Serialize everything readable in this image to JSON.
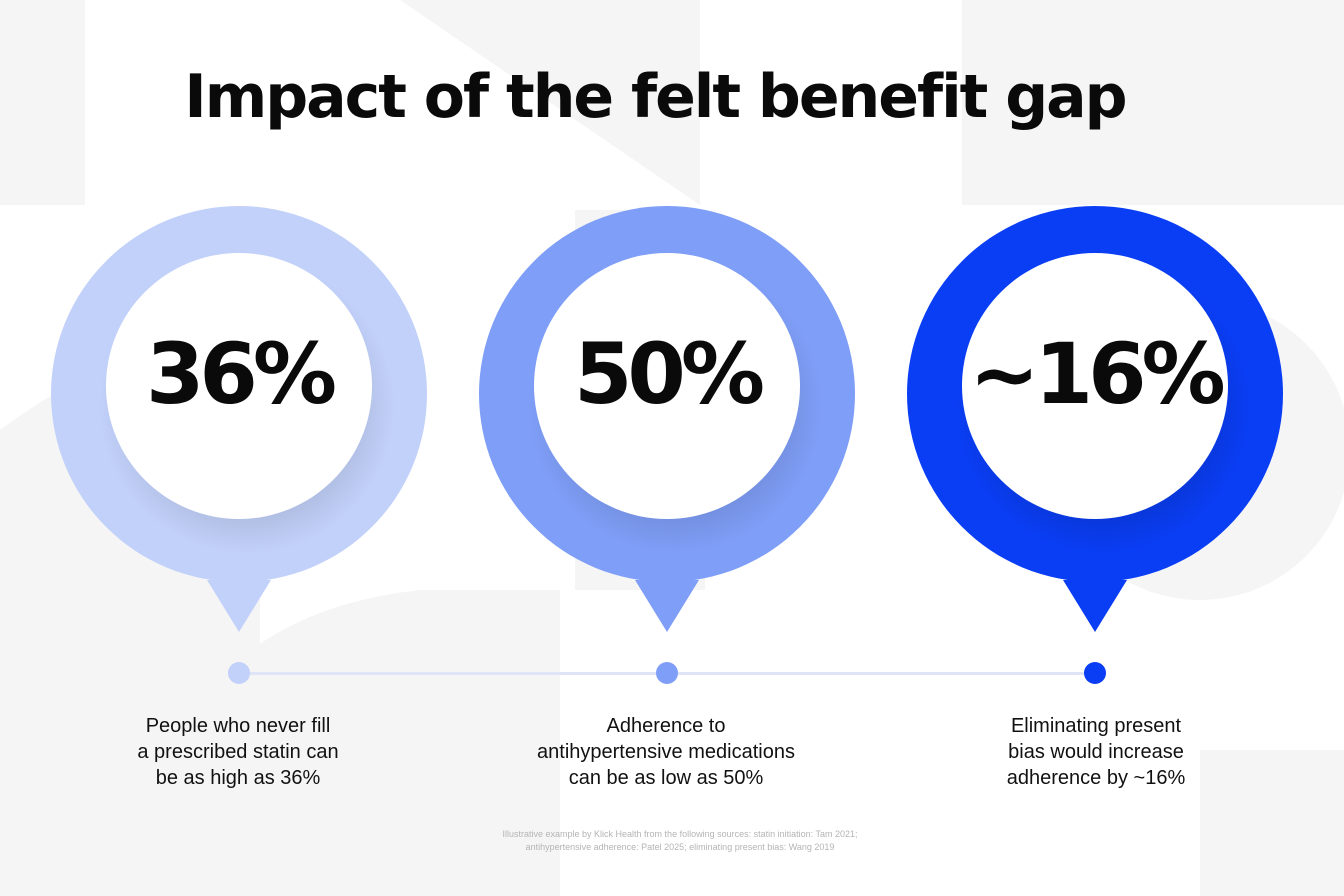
{
  "title": "Impact of the felt benefit gap",
  "stats": [
    {
      "value": "36%",
      "color": "#c2d1fa",
      "caption": [
        "People who never fill",
        "a prescribed statin can",
        "be as high as 36%"
      ]
    },
    {
      "value": "50%",
      "color": "#7f9ef7",
      "caption": [
        "Adherence to",
        "antihypertensive medications",
        "can be as low as 50%"
      ]
    },
    {
      "value": "~16%",
      "color": "#0a3ef5",
      "caption": [
        "Eliminating present",
        "bias would increase",
        "adherence by ~16%"
      ]
    }
  ],
  "footnote": [
    "Illustrative example by Klick Health from the following sources: statin initiation: Tam 2021;",
    "antihypertensive adherence: Patel 2025; eliminating present bias: Wang 2019"
  ],
  "colors": {
    "background": "#ffffff",
    "pattern": "#f5f5f5",
    "timeline": "#dfe5f7",
    "text": "#0a0a0a"
  }
}
